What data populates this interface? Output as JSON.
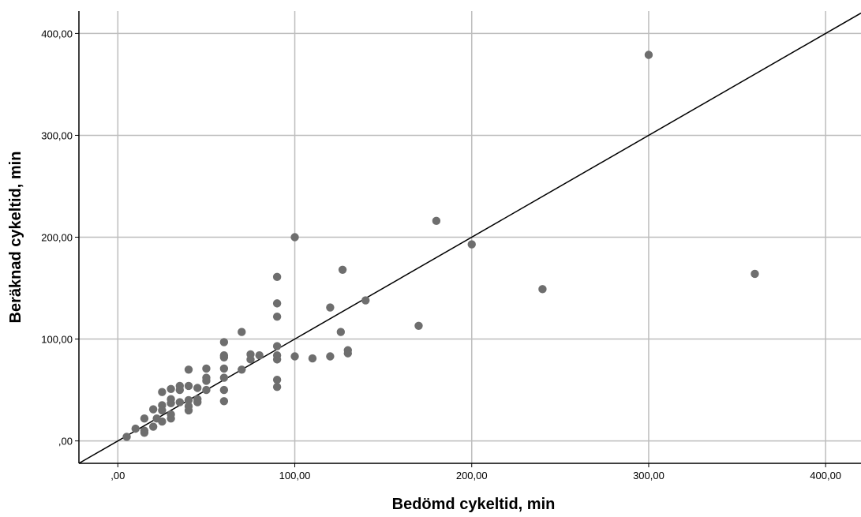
{
  "chart_data": {
    "type": "scatter",
    "title": "",
    "xlabel": "Bedömd cykeltid, min",
    "ylabel": "Beräknad cykeltid, min",
    "xlim": [
      -22,
      420
    ],
    "ylim": [
      -22,
      422
    ],
    "xticks": [
      0,
      100,
      200,
      300,
      400
    ],
    "yticks": [
      0,
      100,
      200,
      300,
      400
    ],
    "xtick_labels": [
      ",00",
      "100,00",
      "200,00",
      "300,00",
      "400,00"
    ],
    "ytick_labels": [
      ",00",
      "100,00",
      "200,00",
      "300,00",
      "400,00"
    ],
    "grid": true,
    "reference_line": {
      "type": "identity",
      "label": "y = x"
    },
    "colors": {
      "points": "#6e6e6e",
      "grid": "#bdbdbd",
      "axis": "#000000",
      "line": "#000000"
    },
    "points": [
      [
        5,
        4
      ],
      [
        10,
        12
      ],
      [
        15,
        22
      ],
      [
        15,
        10
      ],
      [
        15,
        8
      ],
      [
        20,
        31
      ],
      [
        20,
        14
      ],
      [
        22,
        22
      ],
      [
        25,
        48
      ],
      [
        25,
        35
      ],
      [
        25,
        30
      ],
      [
        25,
        19
      ],
      [
        30,
        51
      ],
      [
        30,
        41
      ],
      [
        30,
        37
      ],
      [
        30,
        26
      ],
      [
        30,
        22
      ],
      [
        35,
        54
      ],
      [
        35,
        50
      ],
      [
        35,
        38
      ],
      [
        40,
        70
      ],
      [
        40,
        54
      ],
      [
        40,
        40
      ],
      [
        40,
        34
      ],
      [
        40,
        30
      ],
      [
        45,
        52
      ],
      [
        45,
        41
      ],
      [
        45,
        38
      ],
      [
        50,
        71
      ],
      [
        50,
        62
      ],
      [
        50,
        59
      ],
      [
        50,
        50
      ],
      [
        60,
        97
      ],
      [
        60,
        84
      ],
      [
        60,
        82
      ],
      [
        60,
        71
      ],
      [
        60,
        62
      ],
      [
        60,
        50
      ],
      [
        60,
        39
      ],
      [
        70,
        107
      ],
      [
        70,
        70
      ],
      [
        75,
        85
      ],
      [
        75,
        80
      ],
      [
        80,
        84
      ],
      [
        90,
        161
      ],
      [
        90,
        135
      ],
      [
        90,
        122
      ],
      [
        90,
        93
      ],
      [
        90,
        84
      ],
      [
        90,
        80
      ],
      [
        90,
        60
      ],
      [
        90,
        53
      ],
      [
        100,
        200
      ],
      [
        100,
        83
      ],
      [
        110,
        81
      ],
      [
        120,
        131
      ],
      [
        120,
        83
      ],
      [
        126,
        107
      ],
      [
        127,
        168
      ],
      [
        130,
        89
      ],
      [
        130,
        86
      ],
      [
        140,
        138
      ],
      [
        170,
        113
      ],
      [
        180,
        216
      ],
      [
        200,
        193
      ],
      [
        240,
        149
      ],
      [
        300,
        379
      ],
      [
        360,
        164
      ]
    ]
  }
}
